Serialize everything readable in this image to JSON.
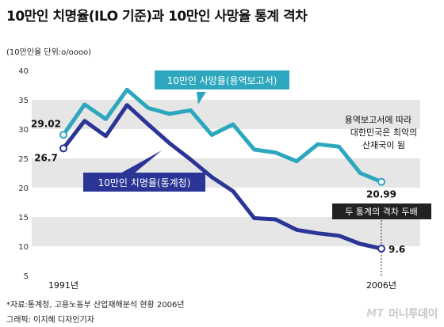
{
  "title": "10만인 치명율(ILO 기준)과 10만인 사망율 통계 격차",
  "unit_note": "(10만인율 단위:o/oooo)",
  "source": "*자료:통계청, 고용노동부 산업재해분석 현황 2006년",
  "credit": "그래픽: 이지혜 디자인기자",
  "logo": {
    "mark": "MT",
    "text": "머니투데이"
  },
  "colors": {
    "teal": "#2da7bd",
    "navy": "#2b3595",
    "band": "#e6e6e6",
    "dark": "#222222"
  },
  "chart_data": {
    "type": "line",
    "ylim": [
      5,
      40
    ],
    "yticks": [
      "5",
      "10",
      "15",
      "20",
      "25",
      "30",
      "35",
      "40"
    ],
    "x_start_label": "1991년",
    "x_end_label": "2006년",
    "grid": "alternating horizontal bands",
    "series": [
      {
        "name": "10만인 사망율(용역보고서)",
        "color": "#2da7bd",
        "values": [
          29.02,
          34.2,
          31.7,
          36.7,
          33.6,
          32.6,
          33.2,
          29.0,
          30.8,
          26.5,
          26.0,
          24.5,
          27.4,
          27.0,
          22.5,
          20.99
        ],
        "start_label": "29.02",
        "end_label": "20.99"
      },
      {
        "name": "10만인 치명율(통계청)",
        "color": "#2b3595",
        "values": [
          26.7,
          31.4,
          28.8,
          34.1,
          30.8,
          27.6,
          24.8,
          21.8,
          19.4,
          14.8,
          14.6,
          12.8,
          12.2,
          11.8,
          10.4,
          9.6
        ],
        "start_label": "26.7",
        "end_label": "9.6"
      }
    ],
    "annotations": {
      "note_lines": [
        "용역보고서에 따라",
        "대한민국은 최악의",
        "산재국이 됨"
      ],
      "gap_label": "두 통계의 격차 두배"
    }
  }
}
